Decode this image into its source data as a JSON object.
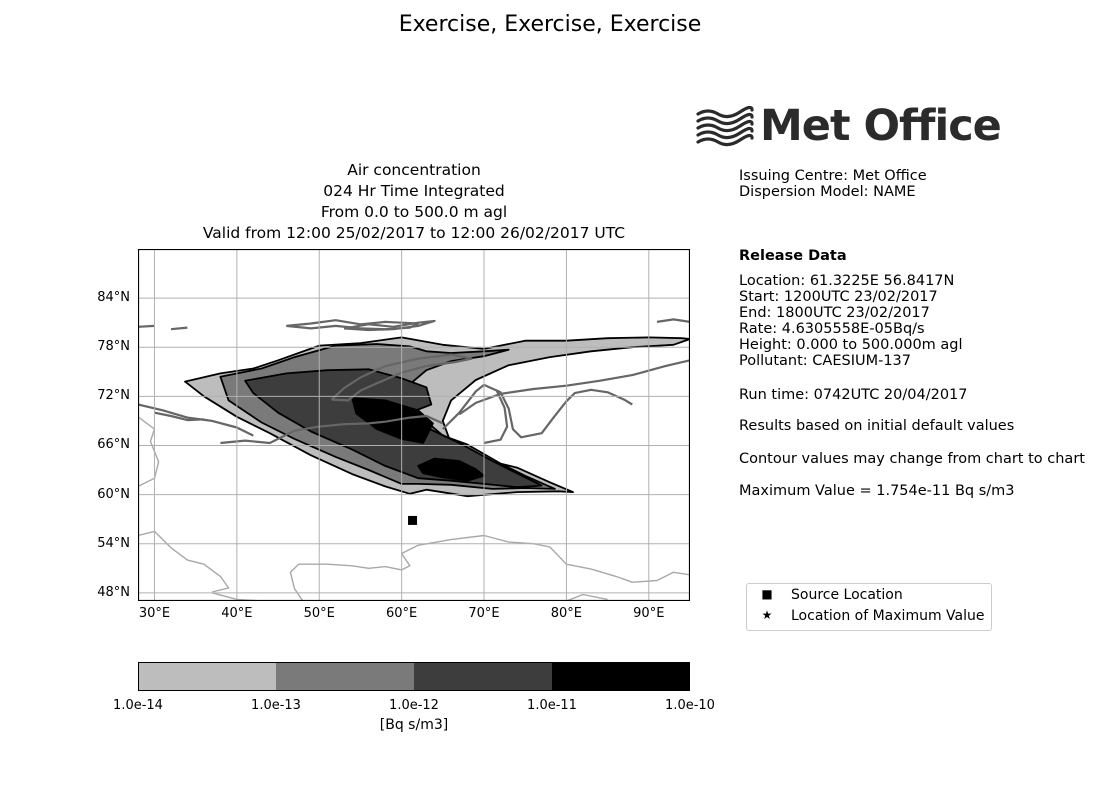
{
  "page_title": "Exercise, Exercise, Exercise",
  "plot_title": {
    "line1": "Air concentration",
    "line2": "024 Hr Time Integrated",
    "line3": "From 0.0 to 500.0 m agl",
    "line4": "Valid from 12:00 25/02/2017 to 12:00 26/02/2017 UTC"
  },
  "logo": {
    "text": "Met Office"
  },
  "issuing": {
    "centre": "Issuing Centre: Met Office",
    "model": "Dispersion Model: NAME"
  },
  "release": {
    "heading": "Release Data",
    "location": "Location: 61.3225E   56.8417N",
    "start": "Start: 1200UTC 23/02/2017",
    "end": "End: 1800UTC 23/02/2017",
    "rate": "Rate: 4.6305558E-05Bq/s",
    "height": "Height: 0.000 to 500.000m agl",
    "pollutant": "Pollutant: CAESIUM-137"
  },
  "run_time": "Run time: 0742UTC 20/04/2017",
  "notes": {
    "results": "Results based on initial default values",
    "contour": "Contour values may change from chart to chart",
    "maximum": "Maximum Value = 1.754e-11 Bq s/m3"
  },
  "legend": {
    "source_symbol": "■",
    "source_label": "Source Location",
    "max_symbol": "★",
    "max_label": "Location of Maximum Value"
  },
  "map": {
    "lon_range": [
      28,
      95
    ],
    "lat_range": [
      47,
      90
    ],
    "lat_ticks": [
      {
        "value": 48,
        "label": "48°N"
      },
      {
        "value": 54,
        "label": "54°N"
      },
      {
        "value": 60,
        "label": "60°N"
      },
      {
        "value": 66,
        "label": "66°N"
      },
      {
        "value": 72,
        "label": "72°N"
      },
      {
        "value": 78,
        "label": "78°N"
      },
      {
        "value": 84,
        "label": "84°N"
      }
    ],
    "lon_ticks": [
      {
        "value": 30,
        "label": "30°E"
      },
      {
        "value": 40,
        "label": "40°E"
      },
      {
        "value": 50,
        "label": "50°E"
      },
      {
        "value": 60,
        "label": "60°E"
      },
      {
        "value": 70,
        "label": "70°E"
      },
      {
        "value": 80,
        "label": "80°E"
      },
      {
        "value": 90,
        "label": "90°E"
      }
    ],
    "source": {
      "lon": 61.3225,
      "lat": 56.8417
    },
    "contours": [
      {
        "name": "level-1e-14",
        "fill": "#bdbdbd",
        "points": [
          [
            33.7,
            73.8
          ],
          [
            38,
            74.8
          ],
          [
            42,
            75.4
          ],
          [
            45,
            76.4
          ],
          [
            50,
            78.2
          ],
          [
            55,
            78.5
          ],
          [
            60,
            79.2
          ],
          [
            65,
            78.3
          ],
          [
            70,
            77.8
          ],
          [
            75,
            78.8
          ],
          [
            80,
            78.8
          ],
          [
            85,
            79.1
          ],
          [
            90,
            79.2
          ],
          [
            94,
            79.1
          ],
          [
            95,
            79
          ],
          [
            93,
            78.3
          ],
          [
            88,
            78
          ],
          [
            83,
            77.5
          ],
          [
            78,
            76.8
          ],
          [
            73,
            75.8
          ],
          [
            69,
            74
          ],
          [
            66,
            71.5
          ],
          [
            65,
            69
          ],
          [
            66,
            66.2
          ],
          [
            69,
            64.5
          ],
          [
            74,
            63.3
          ],
          [
            78,
            61.5
          ],
          [
            80.8,
            60.3
          ],
          [
            79,
            60.4
          ],
          [
            74,
            60.3
          ],
          [
            68,
            59.8
          ],
          [
            63,
            60.6
          ],
          [
            61,
            60.1
          ],
          [
            58,
            61
          ],
          [
            54,
            62.5
          ],
          [
            49,
            64.8
          ],
          [
            44,
            67.5
          ],
          [
            40,
            69.5
          ],
          [
            36,
            72
          ],
          [
            33.7,
            73.8
          ]
        ]
      },
      {
        "name": "level-1e-13",
        "fill": "#7a7a7a",
        "points": [
          [
            38,
            74.4
          ],
          [
            43,
            75.4
          ],
          [
            47,
            76.8
          ],
          [
            52,
            78.2
          ],
          [
            57,
            78.4
          ],
          [
            61,
            78.1
          ],
          [
            63,
            77.5
          ],
          [
            66,
            77.3
          ],
          [
            70,
            77.5
          ],
          [
            73,
            77.7
          ],
          [
            70,
            76.9
          ],
          [
            66,
            76.3
          ],
          [
            63,
            75.2
          ],
          [
            61,
            73.5
          ],
          [
            60,
            71.5
          ],
          [
            62,
            69.8
          ],
          [
            65,
            67.2
          ],
          [
            68,
            66.1
          ],
          [
            72,
            63.8
          ],
          [
            75,
            62.3
          ],
          [
            78.6,
            60.7
          ],
          [
            75,
            60.8
          ],
          [
            71,
            60.7
          ],
          [
            66,
            61.2
          ],
          [
            62,
            61.3
          ],
          [
            60,
            61.3
          ],
          [
            56,
            63
          ],
          [
            52,
            64.6
          ],
          [
            47,
            66.8
          ],
          [
            43,
            68.8
          ],
          [
            39,
            71.5
          ],
          [
            38,
            74.4
          ]
        ]
      },
      {
        "name": "level-1e-12",
        "fill": "#3d3d3d",
        "points": [
          [
            41,
            73.9
          ],
          [
            46,
            74.8
          ],
          [
            51,
            75.2
          ],
          [
            56,
            75.3
          ],
          [
            60,
            74.2
          ],
          [
            63,
            73.1
          ],
          [
            63.6,
            71
          ],
          [
            61,
            70
          ],
          [
            63,
            68.2
          ],
          [
            67,
            66.3
          ],
          [
            71,
            64.1
          ],
          [
            74,
            62.6
          ],
          [
            77,
            61.1
          ],
          [
            74,
            60.9
          ],
          [
            70,
            61.3
          ],
          [
            66,
            61.7
          ],
          [
            62,
            62
          ],
          [
            58,
            63.5
          ],
          [
            54,
            65.5
          ],
          [
            49,
            67.7
          ],
          [
            45,
            70
          ],
          [
            42,
            72.4
          ],
          [
            41,
            73.9
          ]
        ]
      },
      {
        "name": "level-1e-11",
        "fill": "#000000",
        "points": [
          [
            54,
            71.8
          ],
          [
            58,
            71.5
          ],
          [
            62,
            70.3
          ],
          [
            63.8,
            68.7
          ],
          [
            62.6,
            66.3
          ],
          [
            60,
            66.8
          ],
          [
            57,
            68
          ],
          [
            54.5,
            69.9
          ],
          [
            54,
            71.8
          ]
        ]
      },
      {
        "name": "level-1e-11-b",
        "fill": "#000000",
        "points": [
          [
            62,
            63.5
          ],
          [
            64,
            64.4
          ],
          [
            67,
            64.1
          ],
          [
            69,
            63.1
          ],
          [
            70,
            62.3
          ],
          [
            68,
            61.7
          ],
          [
            65,
            62.1
          ],
          [
            62.6,
            62.6
          ],
          [
            62,
            63.5
          ]
        ]
      }
    ],
    "coastlines": [
      {
        "name": "novaya-zemlya-coast",
        "color": "#666666",
        "width": 2.2,
        "points": [
          [
            51.5,
            71.6
          ],
          [
            53,
            73
          ],
          [
            55,
            74.3
          ],
          [
            58,
            75.7
          ],
          [
            62,
            76.6
          ],
          [
            66,
            77.1
          ],
          [
            68.5,
            76.6
          ],
          [
            66.5,
            76.2
          ],
          [
            63,
            75.7
          ],
          [
            60,
            74.9
          ],
          [
            57,
            73.6
          ],
          [
            55,
            72.7
          ],
          [
            53.5,
            71.5
          ],
          [
            51.5,
            71.6
          ]
        ]
      },
      {
        "name": "taymyr-coast",
        "color": "#666666",
        "width": 2.2,
        "points": [
          [
            67,
            69.8
          ],
          [
            69,
            71.2
          ],
          [
            72,
            72.3
          ],
          [
            76,
            72.9
          ],
          [
            80,
            73.3
          ],
          [
            84,
            73.9
          ],
          [
            88,
            74.6
          ],
          [
            92,
            75.7
          ],
          [
            95,
            76.4
          ]
        ]
      },
      {
        "name": "yamal-coast",
        "color": "#666666",
        "width": 2.2,
        "points": [
          [
            65,
            68
          ],
          [
            67,
            70
          ],
          [
            69,
            72.6
          ],
          [
            70,
            73.4
          ],
          [
            72,
            72.5
          ],
          [
            73,
            70.5
          ],
          [
            73.5,
            68
          ],
          [
            74.5,
            67
          ],
          [
            77,
            67.5
          ],
          [
            78.5,
            69.5
          ],
          [
            80,
            71.4
          ],
          [
            81,
            72.4
          ],
          [
            83,
            72.8
          ],
          [
            85,
            72.5
          ],
          [
            87,
            71.6
          ],
          [
            88,
            71
          ]
        ]
      },
      {
        "name": "kara-coast-west",
        "color": "#666666",
        "width": 2.2,
        "points": [
          [
            38,
            66.3
          ],
          [
            41,
            66.6
          ],
          [
            44,
            66.3
          ],
          [
            47,
            67.8
          ],
          [
            50,
            68.3
          ],
          [
            53,
            68.6
          ],
          [
            56,
            68.7
          ],
          [
            58,
            68.9
          ],
          [
            61,
            69.4
          ],
          [
            63,
            69.6
          ],
          [
            65,
            68.7
          ]
        ]
      },
      {
        "name": "kola-coast",
        "color": "#666666",
        "width": 2.2,
        "points": [
          [
            28,
            71
          ],
          [
            31,
            70.3
          ],
          [
            34,
            69.4
          ],
          [
            37,
            69
          ],
          [
            40,
            68.2
          ],
          [
            42,
            67.2
          ]
        ]
      },
      {
        "name": "ob-gulf",
        "color": "#666666",
        "width": 2.2,
        "points": [
          [
            70,
            66.3
          ],
          [
            72,
            66.7
          ],
          [
            72.8,
            68.3
          ],
          [
            72.5,
            70.6
          ],
          [
            71.5,
            72.8
          ]
        ]
      },
      {
        "name": "franz-josef-1",
        "color": "#666666",
        "width": 2.2,
        "points": [
          [
            46,
            80.6
          ],
          [
            49,
            80.9
          ],
          [
            52,
            81.3
          ],
          [
            55,
            80.8
          ],
          [
            58,
            81.1
          ],
          [
            60,
            81
          ],
          [
            62,
            80.9
          ],
          [
            61,
            80.4
          ],
          [
            58,
            80.2
          ],
          [
            55,
            80.3
          ],
          [
            52,
            80.6
          ],
          [
            49,
            80.3
          ],
          [
            46,
            80.6
          ]
        ]
      },
      {
        "name": "franz-josef-2",
        "color": "#666666",
        "width": 2.2,
        "points": [
          [
            53,
            80.3
          ],
          [
            56,
            80.8
          ],
          [
            59,
            80.5
          ],
          [
            62,
            81
          ],
          [
            64,
            81.2
          ],
          [
            62,
            80.6
          ],
          [
            59,
            80.2
          ],
          [
            56,
            80.1
          ],
          [
            53,
            80.3
          ]
        ]
      },
      {
        "name": "svalbard-edge",
        "color": "#666666",
        "width": 2.2,
        "points": [
          [
            28,
            80.5
          ],
          [
            30,
            80.6
          ]
        ]
      },
      {
        "name": "kvitoya",
        "color": "#666666",
        "width": 2.2,
        "points": [
          [
            32,
            80.2
          ],
          [
            34,
            80.4
          ]
        ]
      },
      {
        "name": "severnaya-zemlya",
        "color": "#666666",
        "width": 2.2,
        "points": [
          [
            91,
            81.1
          ],
          [
            93,
            81.4
          ],
          [
            95,
            81.1
          ]
        ]
      },
      {
        "name": "kola-north",
        "color": "#666666",
        "width": 2.2,
        "points": [
          [
            30,
            70
          ],
          [
            32,
            69.6
          ],
          [
            34,
            69.1
          ],
          [
            36,
            69.2
          ]
        ]
      },
      {
        "name": "land-boundary-1",
        "color": "#a8a8a8",
        "width": 1.4,
        "points": [
          [
            28,
            69.5
          ],
          [
            30,
            68
          ],
          [
            29.5,
            66.5
          ],
          [
            30.5,
            64
          ],
          [
            30,
            62
          ],
          [
            28,
            61
          ]
        ]
      },
      {
        "name": "land-boundary-2",
        "color": "#a8a8a8",
        "width": 1.4,
        "points": [
          [
            28,
            55
          ],
          [
            30,
            55.5
          ],
          [
            32,
            53.5
          ],
          [
            34,
            52
          ],
          [
            36,
            51.5
          ],
          [
            38,
            50
          ],
          [
            39,
            48.6
          ],
          [
            37,
            48.1
          ]
        ]
      },
      {
        "name": "land-boundary-3",
        "color": "#a8a8a8",
        "width": 1.4,
        "points": [
          [
            48,
            47
          ],
          [
            47,
            48.5
          ],
          [
            46.5,
            50.5
          ],
          [
            47.5,
            51.5
          ],
          [
            51,
            51.5
          ],
          [
            54,
            51.3
          ],
          [
            56,
            51
          ],
          [
            58,
            51.2
          ],
          [
            60,
            50.8
          ],
          [
            61,
            51.3
          ],
          [
            60,
            52.8
          ],
          [
            62,
            53.8
          ],
          [
            66,
            54.5
          ],
          [
            70,
            55
          ],
          [
            73,
            54.2
          ],
          [
            76,
            54
          ],
          [
            78,
            53.6
          ],
          [
            80,
            51.5
          ],
          [
            83,
            50.9
          ],
          [
            86,
            50
          ],
          [
            88,
            49.3
          ],
          [
            91,
            49.5
          ],
          [
            93,
            50.5
          ],
          [
            95,
            50.2
          ]
        ]
      },
      {
        "name": "land-boundary-4",
        "color": "#a8a8a8",
        "width": 1.4,
        "points": [
          [
            37,
            48
          ],
          [
            40,
            47.2
          ],
          [
            43,
            47
          ]
        ]
      },
      {
        "name": "land-boundary-5",
        "color": "#a8a8a8",
        "width": 1.4,
        "points": [
          [
            80,
            47
          ],
          [
            82,
            47.8
          ],
          [
            85,
            47.2
          ]
        ]
      }
    ]
  },
  "colorbar": {
    "colors": [
      "#bdbdbd",
      "#7a7a7a",
      "#3d3d3d",
      "#000000"
    ],
    "ticks": [
      "1.0e-14",
      "1.0e-13",
      "1.0e-12",
      "1.0e-11",
      "1.0e-10"
    ],
    "label": "[Bq s/m3]"
  }
}
